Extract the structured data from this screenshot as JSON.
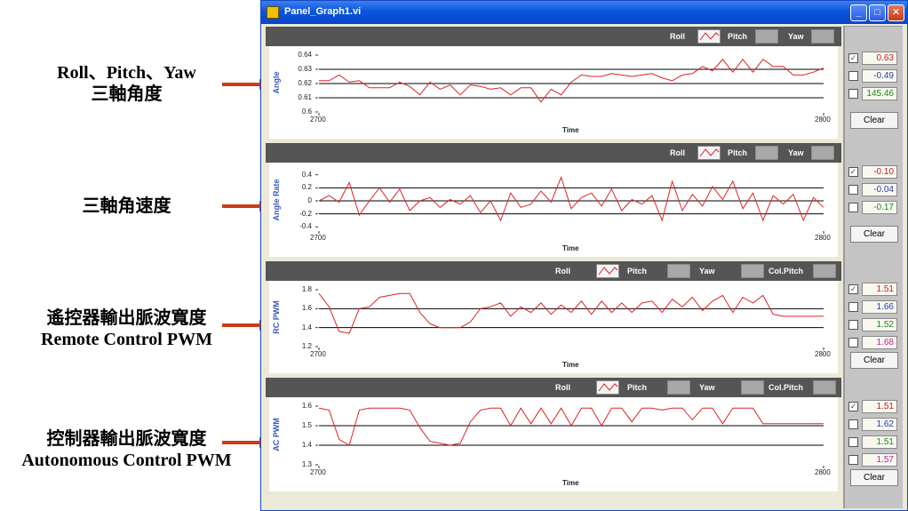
{
  "annotations": [
    {
      "lines": [
        "Roll、Pitch、Yaw",
        "三軸角度"
      ]
    },
    {
      "lines": [
        "三軸角速度"
      ]
    },
    {
      "lines": [
        "遙控器輸出脈波寬度",
        "Remote Control PWM"
      ]
    },
    {
      "lines": [
        "控制器輸出脈波寬度",
        "Autonomous Control PWM"
      ]
    }
  ],
  "colors": {
    "signal": "#dd2222",
    "arrow": "#cc3a14",
    "title_bar": "#0a55e0"
  },
  "window": {
    "title": "Panel_Graph1.vi",
    "icon": "labview-vi-icon",
    "buttons": [
      "minimize-icon",
      "maximize-icon",
      "close-icon"
    ]
  },
  "panels": [
    {
      "legend": [
        "Roll",
        "Pitch",
        "Yaw"
      ],
      "ylabel": "Angle",
      "xlabel": "Time",
      "yticks": [
        "0.64",
        "0.63",
        "0.62",
        "0.61",
        "0.6"
      ],
      "xticks": [
        "2700",
        "2800"
      ]
    },
    {
      "legend": [
        "Roll",
        "Pitch",
        "Yaw"
      ],
      "ylabel": "Angle Rate",
      "xlabel": "Time",
      "yticks": [
        "0.4",
        "0.2",
        "0",
        "-0.2",
        "-0.4"
      ],
      "xticks": [
        "2700",
        "2800"
      ]
    },
    {
      "legend": [
        "Roll",
        "Pitch",
        "Yaw",
        "Col.Pitch"
      ],
      "ylabel": "RC PWM",
      "xlabel": "Time",
      "yticks": [
        "1.8",
        "1.6",
        "1.4",
        "1.2"
      ],
      "xticks": [
        "2700",
        "2800"
      ]
    },
    {
      "legend": [
        "Roll",
        "Pitch",
        "Yaw",
        "Col.Pitch"
      ],
      "ylabel": "AC PWM",
      "xlabel": "Time",
      "yticks": [
        "1.6",
        "1.5",
        "1.4",
        "1.3"
      ],
      "xticks": [
        "2700",
        "2800"
      ]
    }
  ],
  "sidebar": [
    {
      "values": [
        {
          "checked": true,
          "value": "0.63",
          "color": "#c02020"
        },
        {
          "checked": false,
          "value": "-0.49",
          "color": "#2a3ab0"
        },
        {
          "checked": false,
          "value": "145.46",
          "color": "#1a8a1a"
        }
      ],
      "clear": "Clear"
    },
    {
      "values": [
        {
          "checked": true,
          "value": "-0.10",
          "color": "#c02020"
        },
        {
          "checked": false,
          "value": "-0.04",
          "color": "#2a3ab0"
        },
        {
          "checked": false,
          "value": "-0.17",
          "color": "#1a8a1a"
        }
      ],
      "clear": "Clear"
    },
    {
      "values": [
        {
          "checked": true,
          "value": "1.51",
          "color": "#c02020"
        },
        {
          "checked": false,
          "value": "1.66",
          "color": "#2a3ab0"
        },
        {
          "checked": false,
          "value": "1.52",
          "color": "#1a8a1a"
        },
        {
          "checked": false,
          "value": "1.68",
          "color": "#c020a0"
        }
      ],
      "clear": "Clear"
    },
    {
      "values": [
        {
          "checked": true,
          "value": "1.51",
          "color": "#c02020"
        },
        {
          "checked": false,
          "value": "1.62",
          "color": "#2a3ab0"
        },
        {
          "checked": false,
          "value": "1.51",
          "color": "#1a8a1a"
        },
        {
          "checked": false,
          "value": "1.57",
          "color": "#c020a0"
        }
      ],
      "clear": "Clear"
    }
  ],
  "chart_data": [
    {
      "type": "line",
      "xlabel": "Time",
      "ylabel": "Angle",
      "xlim": [
        2700,
        2800
      ],
      "ylim": [
        0.6,
        0.64
      ],
      "gridlines": [
        0.61,
        0.62,
        0.63
      ],
      "series": [
        {
          "name": "Roll",
          "x": [
            2700,
            2702,
            2704,
            2706,
            2708,
            2710,
            2712,
            2714,
            2716,
            2718,
            2720,
            2722,
            2724,
            2726,
            2728,
            2730,
            2732,
            2734,
            2736,
            2738,
            2740,
            2742,
            2744,
            2746,
            2748,
            2750,
            2752,
            2754,
            2756,
            2758,
            2760,
            2762,
            2764,
            2766,
            2768,
            2770,
            2772,
            2774,
            2776,
            2778,
            2780,
            2782,
            2784,
            2786,
            2788,
            2790,
            2792,
            2794,
            2796,
            2798,
            2800
          ],
          "y": [
            0.622,
            0.622,
            0.626,
            0.621,
            0.622,
            0.617,
            0.617,
            0.617,
            0.621,
            0.618,
            0.612,
            0.621,
            0.616,
            0.619,
            0.612,
            0.619,
            0.618,
            0.616,
            0.617,
            0.612,
            0.617,
            0.617,
            0.607,
            0.616,
            0.612,
            0.621,
            0.626,
            0.625,
            0.625,
            0.627,
            0.626,
            0.625,
            0.626,
            0.627,
            0.624,
            0.622,
            0.626,
            0.627,
            0.632,
            0.629,
            0.637,
            0.628,
            0.637,
            0.628,
            0.637,
            0.632,
            0.632,
            0.626,
            0.626,
            0.628,
            0.631
          ]
        }
      ]
    },
    {
      "type": "line",
      "xlabel": "Time",
      "ylabel": "Angle Rate",
      "xlim": [
        2700,
        2800
      ],
      "ylim": [
        -0.45,
        0.45
      ],
      "gridlines": [
        -0.2,
        0,
        0.2
      ],
      "series": [
        {
          "name": "Roll",
          "x": [
            2700,
            2702,
            2704,
            2706,
            2708,
            2710,
            2712,
            2714,
            2716,
            2718,
            2720,
            2722,
            2724,
            2726,
            2728,
            2730,
            2732,
            2734,
            2736,
            2738,
            2740,
            2742,
            2744,
            2746,
            2748,
            2750,
            2752,
            2754,
            2756,
            2758,
            2760,
            2762,
            2764,
            2766,
            2768,
            2770,
            2772,
            2774,
            2776,
            2778,
            2780,
            2782,
            2784,
            2786,
            2788,
            2790,
            2792,
            2794,
            2796,
            2798,
            2800
          ],
          "y": [
            0,
            0.08,
            -0.02,
            0.28,
            -0.22,
            0,
            0.2,
            -0.02,
            0.18,
            -0.15,
            0,
            0.05,
            -0.1,
            0.02,
            -0.05,
            0.08,
            -0.18,
            0,
            -0.3,
            0.12,
            -0.1,
            -0.05,
            0.15,
            -0.02,
            0.36,
            -0.12,
            0.05,
            0.12,
            -0.08,
            0.18,
            -0.15,
            0.02,
            -0.05,
            0.08,
            -0.3,
            0.3,
            -0.15,
            0.1,
            -0.08,
            0.22,
            0.02,
            0.3,
            -0.12,
            0.12,
            -0.3,
            0.08,
            -0.05,
            0.1,
            -0.3,
            0.05,
            -0.1
          ]
        }
      ]
    },
    {
      "type": "line",
      "xlabel": "Time",
      "ylabel": "RC PWM",
      "xlim": [
        2700,
        2800
      ],
      "ylim": [
        1.2,
        1.8
      ],
      "gridlines": [
        1.4,
        1.6
      ],
      "series": [
        {
          "name": "Roll",
          "x": [
            2700,
            2702,
            2704,
            2706,
            2708,
            2710,
            2712,
            2714,
            2716,
            2718,
            2720,
            2722,
            2724,
            2726,
            2728,
            2730,
            2732,
            2734,
            2736,
            2738,
            2740,
            2742,
            2744,
            2746,
            2748,
            2750,
            2752,
            2754,
            2756,
            2758,
            2760,
            2762,
            2764,
            2766,
            2768,
            2770,
            2772,
            2774,
            2776,
            2778,
            2780,
            2782,
            2784,
            2786,
            2788,
            2790,
            2792,
            2794,
            2796,
            2798,
            2800
          ],
          "y": [
            1.76,
            1.62,
            1.36,
            1.34,
            1.6,
            1.62,
            1.72,
            1.74,
            1.76,
            1.76,
            1.56,
            1.44,
            1.4,
            1.4,
            1.4,
            1.46,
            1.6,
            1.62,
            1.66,
            1.52,
            1.62,
            1.56,
            1.66,
            1.54,
            1.64,
            1.56,
            1.68,
            1.54,
            1.68,
            1.56,
            1.66,
            1.56,
            1.66,
            1.68,
            1.56,
            1.7,
            1.62,
            1.72,
            1.58,
            1.68,
            1.74,
            1.56,
            1.72,
            1.66,
            1.74,
            1.54,
            1.52,
            1.52,
            1.52,
            1.52,
            1.52
          ]
        }
      ]
    },
    {
      "type": "line",
      "xlabel": "Time",
      "ylabel": "AC PWM",
      "xlim": [
        2700,
        2800
      ],
      "ylim": [
        1.3,
        1.6
      ],
      "gridlines": [
        1.4,
        1.5
      ],
      "series": [
        {
          "name": "Roll",
          "x": [
            2700,
            2702,
            2704,
            2706,
            2708,
            2710,
            2712,
            2714,
            2716,
            2718,
            2720,
            2722,
            2724,
            2726,
            2728,
            2730,
            2732,
            2734,
            2736,
            2738,
            2740,
            2742,
            2744,
            2746,
            2748,
            2750,
            2752,
            2754,
            2756,
            2758,
            2760,
            2762,
            2764,
            2766,
            2768,
            2770,
            2772,
            2774,
            2776,
            2778,
            2780,
            2782,
            2784,
            2786,
            2788,
            2790,
            2792,
            2794,
            2796,
            2798,
            2800
          ],
          "y": [
            1.59,
            1.58,
            1.43,
            1.4,
            1.58,
            1.59,
            1.59,
            1.59,
            1.59,
            1.58,
            1.49,
            1.42,
            1.41,
            1.4,
            1.41,
            1.52,
            1.58,
            1.59,
            1.59,
            1.5,
            1.59,
            1.51,
            1.59,
            1.51,
            1.59,
            1.5,
            1.59,
            1.59,
            1.5,
            1.59,
            1.59,
            1.52,
            1.59,
            1.59,
            1.58,
            1.59,
            1.59,
            1.53,
            1.59,
            1.59,
            1.51,
            1.59,
            1.59,
            1.59,
            1.51,
            1.51,
            1.51,
            1.51,
            1.51,
            1.51,
            1.51
          ]
        }
      ]
    }
  ]
}
